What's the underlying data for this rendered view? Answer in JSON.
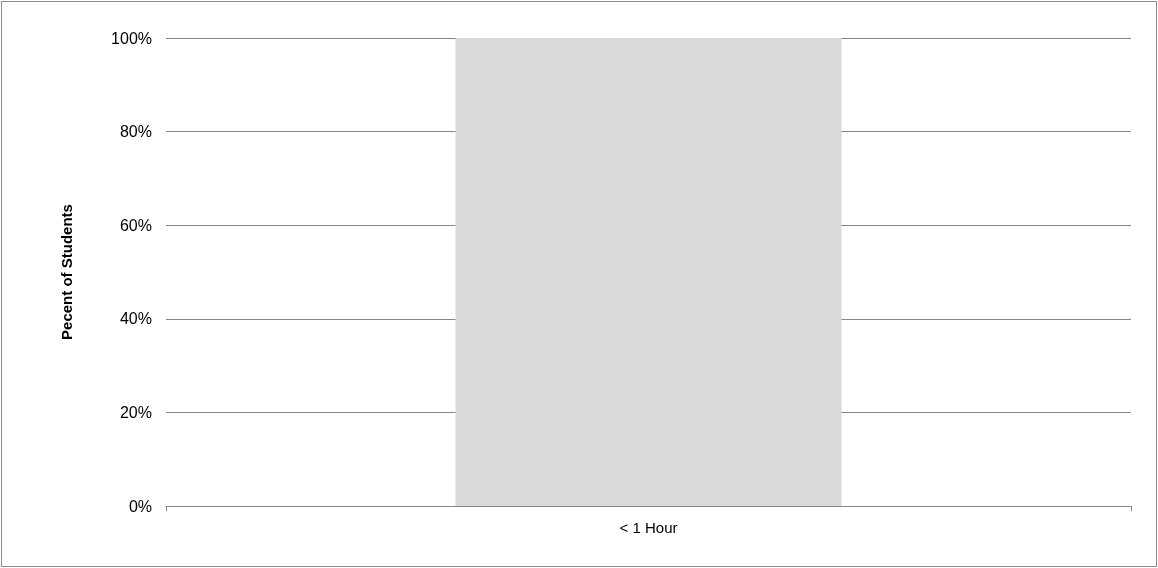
{
  "chart_data": {
    "type": "bar",
    "ylabel": "Pecent of Students",
    "categories": [
      "< 1 Hour"
    ],
    "values": [
      100
    ],
    "color": "#d9d9d9",
    "ylim": [
      0,
      100
    ],
    "yticks": [
      {
        "value": 0,
        "label": "0%"
      },
      {
        "value": 20,
        "label": "20%"
      },
      {
        "value": 40,
        "label": "40%"
      },
      {
        "value": 60,
        "label": "60%"
      },
      {
        "value": 80,
        "label": "80%"
      },
      {
        "value": 100,
        "label": "100%"
      }
    ],
    "grid": "y"
  }
}
